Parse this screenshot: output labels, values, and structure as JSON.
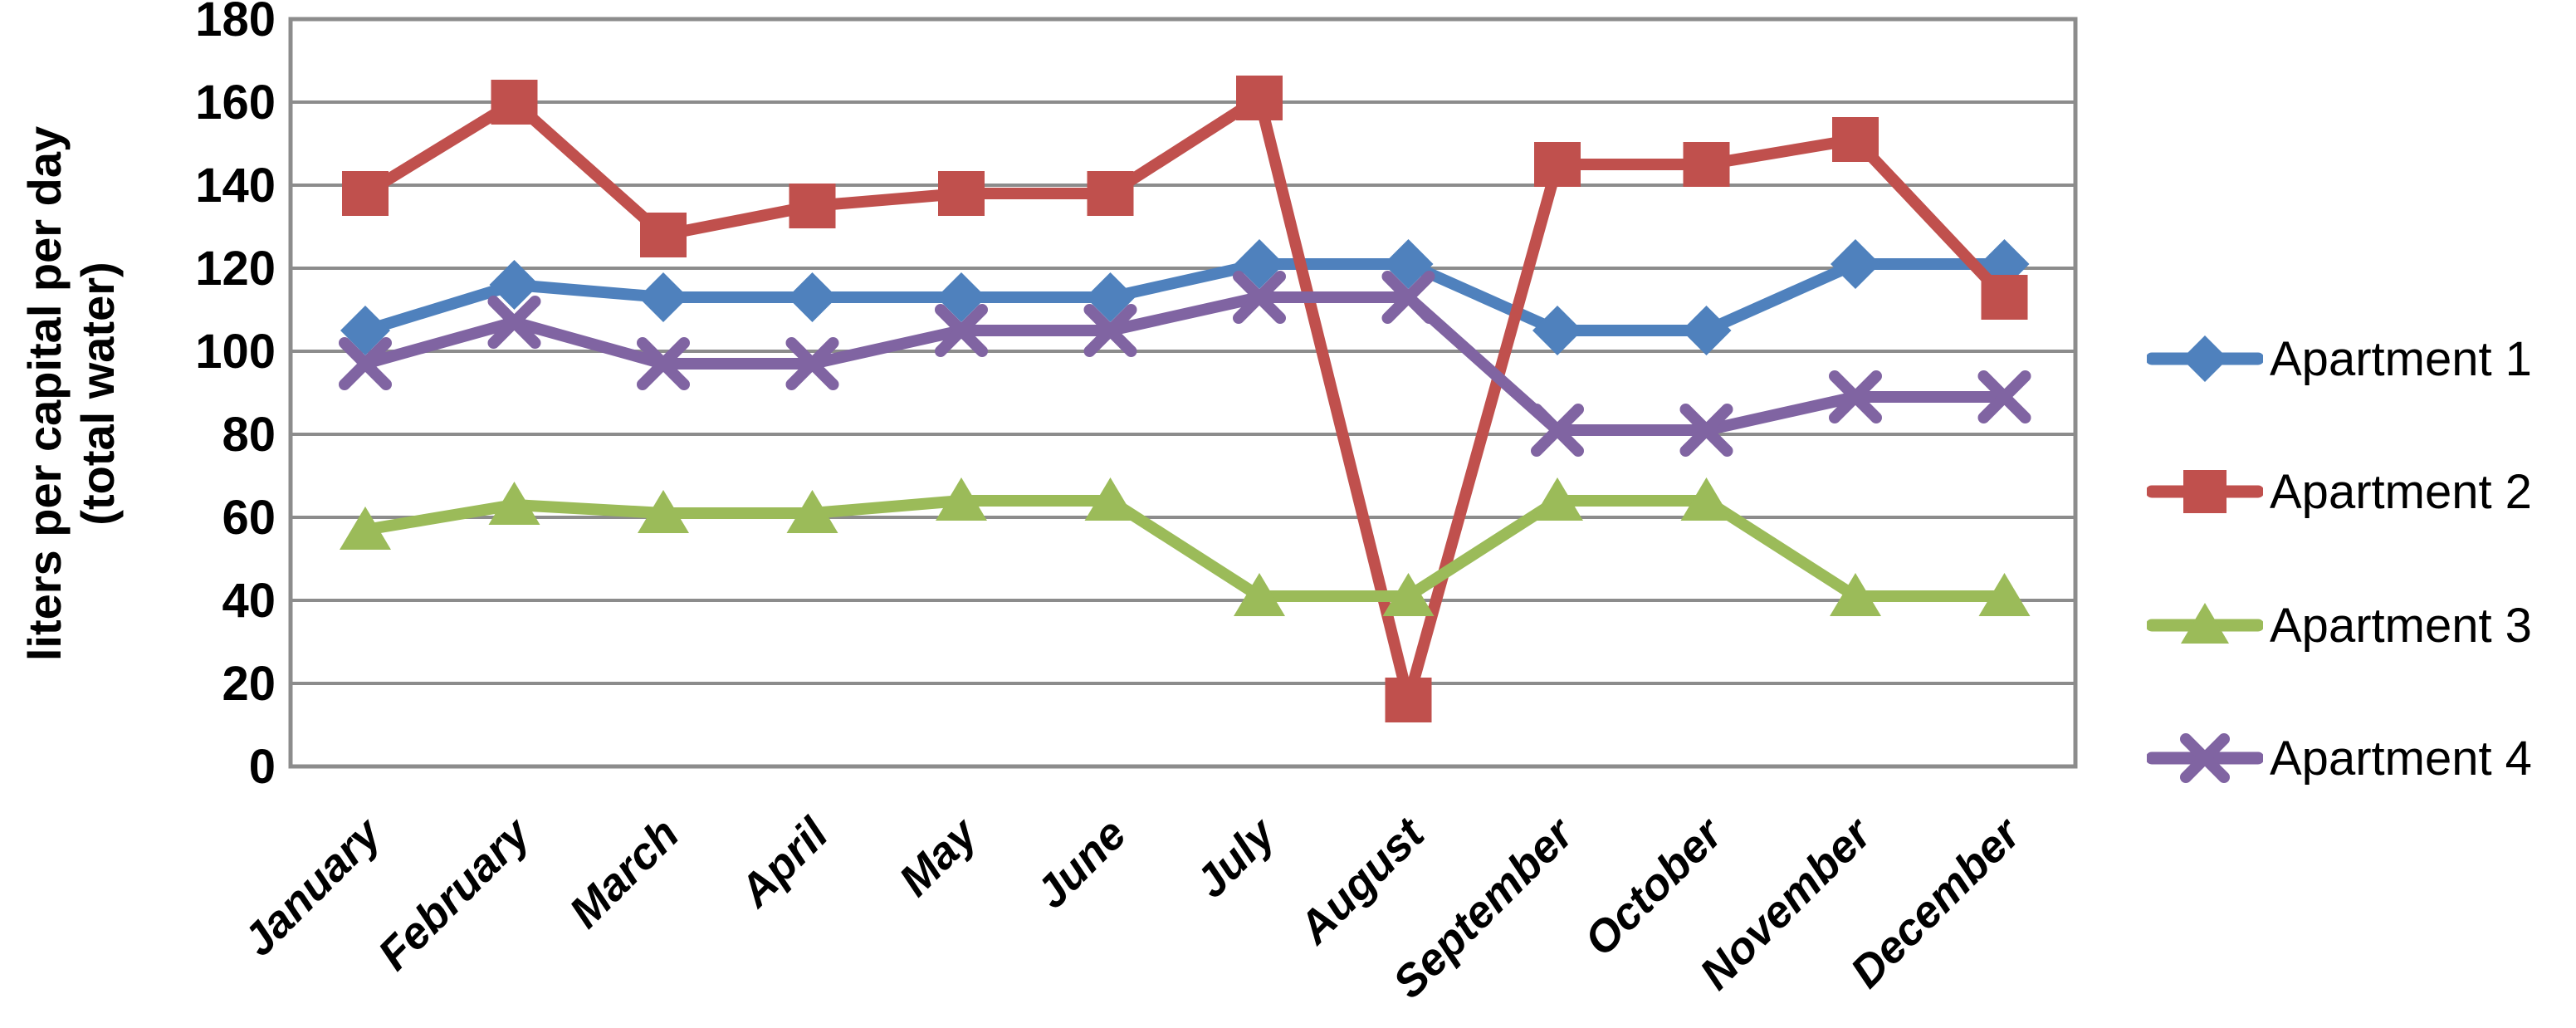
{
  "chart_data": {
    "type": "line",
    "title": "",
    "ylabel_line1": "liters per capital per day",
    "ylabel_line2": "(total water)",
    "xlabel": "",
    "ylim": [
      0,
      180
    ],
    "ytick_step": 20,
    "yticks": [
      180,
      160,
      140,
      120,
      100,
      80,
      60,
      40,
      20,
      0
    ],
    "grid": "horizontal",
    "legend_position": "right",
    "categories": [
      "January",
      "February",
      "March",
      "April",
      "May",
      "June",
      "July",
      "August",
      "September",
      "October",
      "November",
      "December"
    ],
    "series": [
      {
        "name": "Apartment 1",
        "marker": "diamond",
        "color": "#4F81BD",
        "values": [
          105,
          116,
          113,
          113,
          113,
          113,
          121,
          121,
          105,
          105,
          121,
          121
        ]
      },
      {
        "name": "Apartment 2",
        "marker": "square",
        "color": "#C0504D",
        "values": [
          138,
          160,
          128,
          135,
          138,
          138,
          161,
          16,
          145,
          145,
          151,
          113
        ]
      },
      {
        "name": "Apartment 3",
        "marker": "triangle",
        "color": "#9BBB59",
        "values": [
          57,
          63,
          61,
          61,
          64,
          64,
          41,
          41,
          64,
          64,
          41,
          41
        ]
      },
      {
        "name": "Apartment 4",
        "marker": "x",
        "color": "#8064A2",
        "values": [
          97,
          107,
          97,
          97,
          105,
          105,
          113,
          113,
          81,
          81,
          89,
          89
        ]
      }
    ]
  },
  "colors": {
    "gridline": "#8C8C8C",
    "plot_border": "#8C8C8C",
    "text": "#000000",
    "background": "#FFFFFF"
  }
}
